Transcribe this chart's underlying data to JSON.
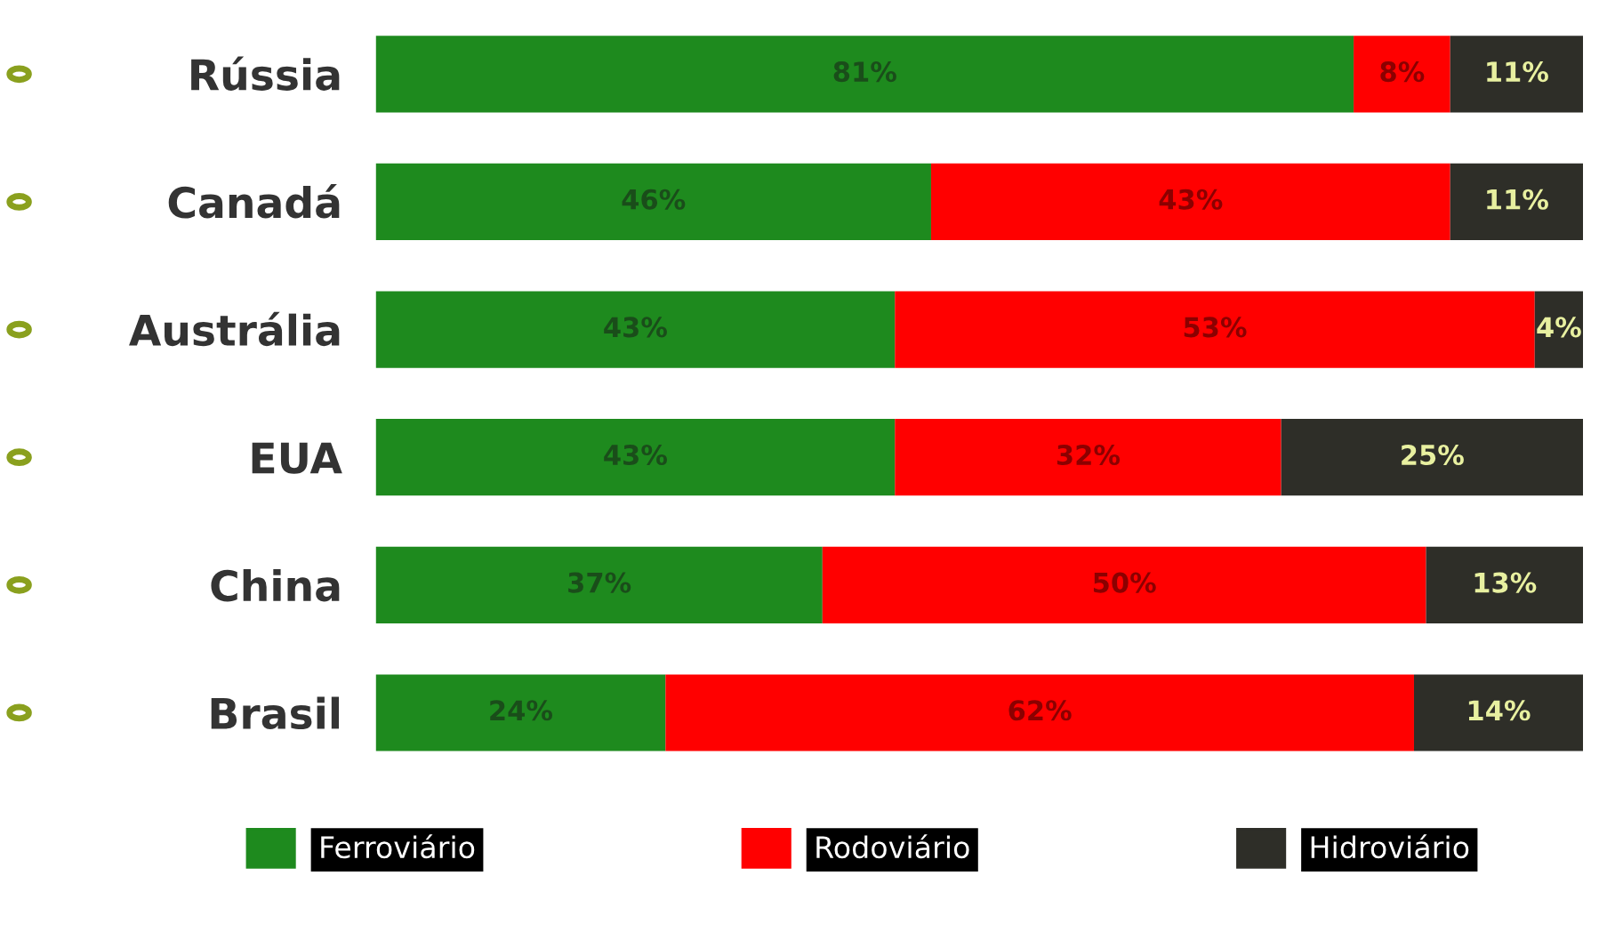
{
  "chart_data": {
    "type": "bar",
    "orientation": "horizontal",
    "stacked": true,
    "legend": "bottom",
    "grid": false,
    "categories": [
      "Rússia",
      "Canadá",
      "Austrália",
      "EUA",
      "China",
      "Brasil"
    ],
    "series": [
      {
        "name": "Ferroviário",
        "color": "#1e8a1e",
        "values": [
          81,
          46,
          43,
          43,
          37,
          24
        ],
        "value_labels": [
          "81%",
          "46%",
          "43%",
          "43%",
          "37%",
          "24%"
        ]
      },
      {
        "name": "Rodoviário",
        "color": "#ff0000",
        "values": [
          8,
          43,
          53,
          32,
          50,
          62
        ],
        "value_labels": [
          "8%",
          "43%",
          "53%",
          "32%",
          "50%",
          "62%"
        ]
      },
      {
        "name": "Hidroviário",
        "color": "#2e2e28",
        "values": [
          11,
          11,
          4,
          25,
          13,
          14
        ],
        "value_labels": [
          "11%",
          "11%",
          "4%",
          "25%",
          "13%",
          "14%"
        ]
      }
    ]
  }
}
